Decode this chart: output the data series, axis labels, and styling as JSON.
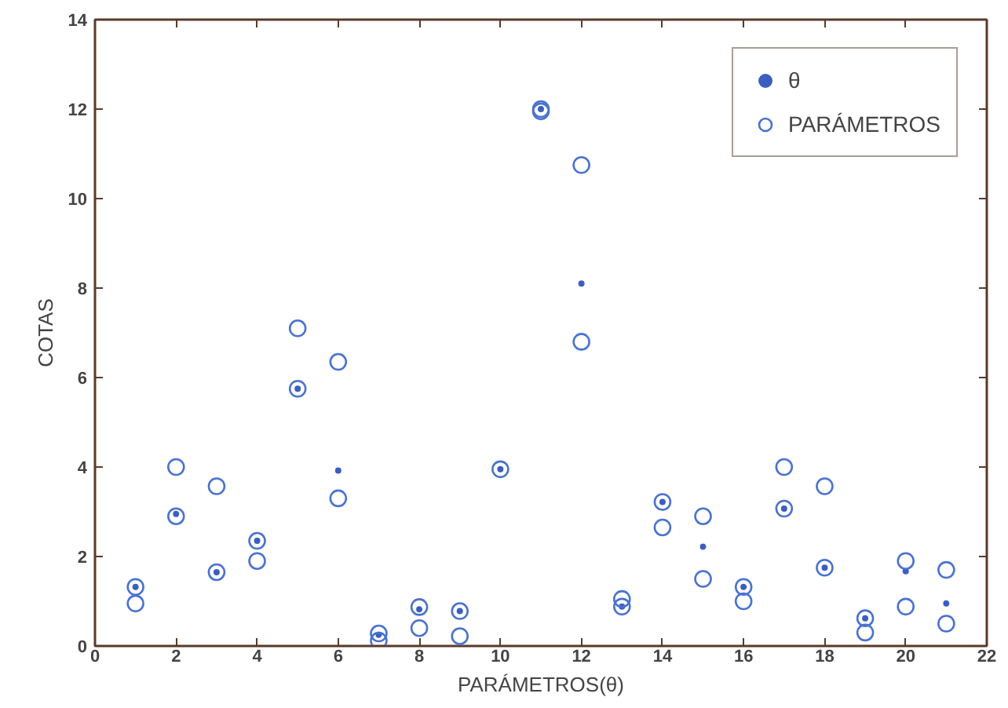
{
  "chart_data": {
    "type": "scatter",
    "xlabel": "PARÁMETROS(θ)",
    "ylabel": "COTAS",
    "xlim": [
      0,
      22
    ],
    "xticks": [
      0,
      2,
      4,
      6,
      8,
      10,
      12,
      14,
      16,
      18,
      20,
      22
    ],
    "ylim": [
      0,
      14
    ],
    "yticks": [
      0,
      2,
      4,
      6,
      8,
      10,
      12,
      14
    ],
    "grid": false,
    "legend": "top right",
    "marker": "circle",
    "series": [
      {
        "name": "θ",
        "color": "#3b5fc0",
        "x": [
          1,
          2,
          3,
          4,
          5,
          6,
          7,
          8,
          9,
          10,
          11,
          12,
          13,
          14,
          15,
          16,
          17,
          18,
          19,
          20,
          21
        ],
        "values": [
          1.32,
          2.95,
          1.65,
          2.35,
          5.75,
          3.92,
          0.25,
          0.82,
          0.78,
          3.95,
          12.0,
          8.1,
          0.88,
          3.22,
          2.22,
          1.32,
          3.07,
          1.75,
          0.62,
          1.67,
          0.95
        ]
      },
      {
        "name": "PARÁMETROS",
        "color": "#4a72d0",
        "x": [
          1,
          1,
          2,
          2,
          3,
          3,
          4,
          4,
          5,
          5,
          6,
          6,
          7,
          7,
          8,
          8,
          9,
          9,
          10,
          11,
          11,
          12,
          12,
          13,
          13,
          14,
          14,
          15,
          15,
          16,
          16,
          17,
          17,
          18,
          18,
          19,
          19,
          20,
          20,
          21,
          21
        ],
        "values": [
          1.32,
          0.95,
          4.0,
          2.9,
          3.57,
          1.65,
          2.35,
          1.9,
          7.1,
          5.75,
          6.35,
          3.3,
          0.28,
          0.12,
          0.87,
          0.4,
          0.78,
          0.22,
          3.95,
          12.0,
          11.95,
          10.75,
          6.8,
          1.05,
          0.88,
          3.22,
          2.65,
          2.9,
          1.5,
          1.32,
          1.0,
          4.0,
          3.07,
          3.57,
          1.75,
          0.62,
          0.3,
          1.9,
          0.88,
          1.7,
          0.5
        ]
      }
    ]
  }
}
